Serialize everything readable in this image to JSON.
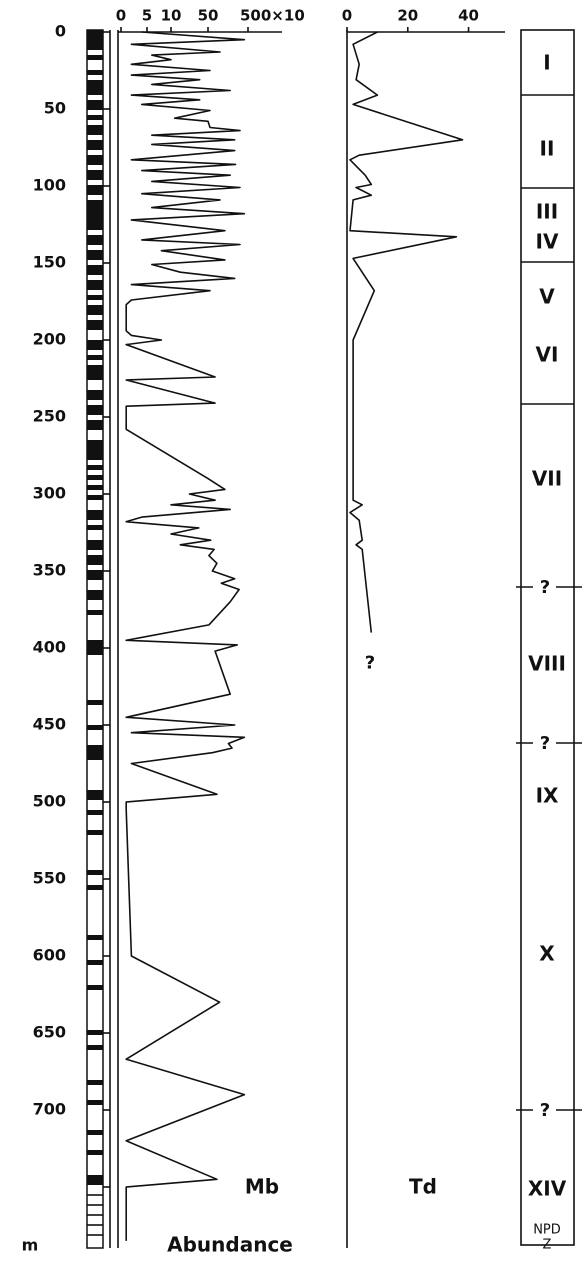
{
  "depth_axis": {
    "label": "m",
    "ylim": [
      0,
      790
    ],
    "yticks": [
      0,
      50,
      100,
      150,
      200,
      250,
      300,
      350,
      400,
      450,
      500,
      550,
      600,
      650,
      700
    ]
  },
  "chart_data": [
    {
      "type": "line",
      "xlabel": "Abundance",
      "xlim": [
        0,
        500
      ],
      "xticks": [
        0,
        5,
        10,
        50,
        {
          "value": 500,
          "label": "500×10"
        }
      ],
      "series": [
        {
          "name": "Mb",
          "color": "#111111",
          "depth": [
            0,
            5,
            8,
            13,
            15,
            18,
            21,
            25,
            28,
            31,
            34,
            38,
            41,
            44,
            47,
            51,
            56,
            58,
            62,
            64,
            67,
            70,
            73,
            77,
            83,
            86,
            90,
            93,
            97,
            101,
            105,
            109,
            114,
            118,
            122,
            129,
            135,
            138,
            142,
            148,
            151,
            156,
            160,
            164,
            168,
            174,
            177,
            181,
            194,
            197,
            200,
            203,
            224,
            226,
            241,
            243,
            252,
            258,
            290,
            297,
            300,
            304,
            307,
            310,
            315,
            318,
            322,
            326,
            330,
            333,
            336,
            340,
            345,
            350,
            355,
            358,
            362,
            370,
            385,
            395,
            398,
            402,
            430,
            445,
            450,
            455,
            458,
            462,
            465,
            468,
            475,
            495,
            500,
            505,
            600,
            630,
            667,
            690,
            720,
            745,
            750,
            785
          ],
          "values": [
            4,
            460,
            2,
            185,
            6,
            10,
            2,
            72,
            2,
            41,
            6,
            300,
            2,
            41,
            4,
            72,
            14,
            50,
            72,
            410,
            6,
            350,
            6,
            350,
            2,
            360,
            4,
            300,
            6,
            410,
            4,
            185,
            6,
            460,
            2,
            240,
            4,
            410,
            8,
            240,
            6,
            20,
            350,
            2,
            72,
            2,
            1,
            1,
            1,
            2,
            8,
            1,
            130,
            1,
            130,
            1,
            1,
            1,
            50,
            240,
            30,
            130,
            10,
            300,
            4,
            1,
            40,
            10,
            80,
            20,
            120,
            60,
            150,
            100,
            350,
            200,
            400,
            300,
            60,
            1,
            380,
            130,
            300,
            1,
            350,
            2,
            460,
            280,
            320,
            100,
            2,
            150,
            1,
            1,
            2,
            180,
            1,
            460,
            1,
            150,
            1,
            1
          ]
        }
      ]
    },
    {
      "type": "line",
      "xlim": [
        0,
        52
      ],
      "xticks": [
        0,
        20,
        40
      ],
      "annotations": [
        "?"
      ],
      "series": [
        {
          "name": "Td",
          "color": "#111111",
          "depth": [
            0,
            8,
            21,
            31,
            41,
            47,
            70,
            80,
            83,
            93,
            99,
            101,
            106,
            109,
            129,
            133,
            147,
            168,
            200,
            304,
            307,
            312,
            317,
            330,
            333,
            336,
            390
          ],
          "values": [
            10,
            2,
            4,
            3,
            10,
            2,
            38,
            4,
            1,
            6,
            8,
            3,
            8,
            2,
            1,
            36,
            2,
            9,
            2,
            2,
            5,
            1,
            4,
            5,
            3,
            5,
            8
          ]
        }
      ]
    }
  ],
  "zones": {
    "labels": [
      "I",
      "II",
      "III",
      "IV",
      "V",
      "VI",
      "VII",
      "?",
      "VIII",
      "?",
      "IX",
      "X",
      "?",
      "XIV"
    ],
    "title": [
      "NPD",
      "Z"
    ]
  }
}
